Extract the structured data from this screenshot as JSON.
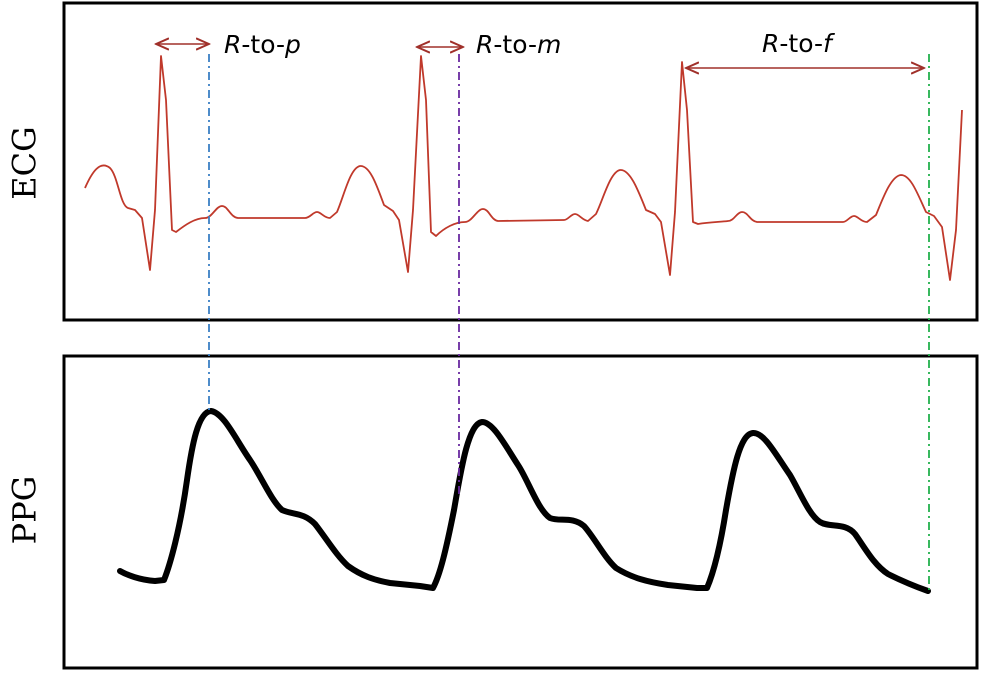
{
  "panels": {
    "ecg": {
      "label": "ECG"
    },
    "ppg": {
      "label": "PPG"
    }
  },
  "annotations": [
    {
      "prefix": "R",
      "mid": "-to-",
      "suffix": "p",
      "color": "#3b7fc4"
    },
    {
      "prefix": "R",
      "mid": "-to-",
      "suffix": "m",
      "color": "#6a2aa0"
    },
    {
      "prefix": "R",
      "mid": "-to-",
      "suffix": "f",
      "color": "#22b14c"
    }
  ],
  "colors": {
    "ecg_trace": "#c0392b",
    "ppg_trace": "#000000",
    "arrow": "#a0302a",
    "frame": "#000000"
  }
}
